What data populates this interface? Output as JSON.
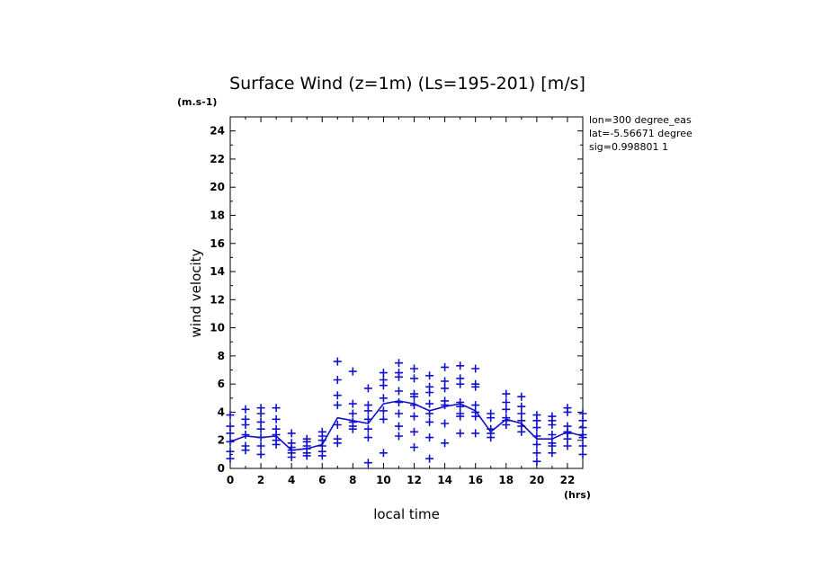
{
  "chart_data": {
    "type": "scatter",
    "title": "Surface Wind (z=1m) (Ls=195-201) [m/s]",
    "ylabel": "wind velocity",
    "xlabel": "local time",
    "y_unit_label": "(m.s-1)",
    "x_unit_label": "(hrs)",
    "xlim": [
      0,
      23
    ],
    "ylim": [
      0,
      25
    ],
    "xticks": [
      0,
      2,
      4,
      6,
      8,
      10,
      12,
      14,
      16,
      18,
      20,
      22
    ],
    "yticks": [
      0,
      2,
      4,
      6,
      8,
      10,
      12,
      14,
      16,
      18,
      20,
      22,
      24
    ],
    "info_lines": [
      "lon=300 degree_eas",
      "lat=-5.56671 degree",
      "sig=0.998801 1"
    ],
    "color": "#1010cc",
    "series": [
      {
        "name": "mean",
        "kind": "line",
        "x": [
          0,
          1,
          2,
          3,
          4,
          5,
          6,
          7,
          8,
          9,
          10,
          11,
          12,
          13,
          14,
          15,
          16,
          17,
          18,
          19,
          20,
          21,
          22,
          23
        ],
        "y": [
          1.9,
          2.3,
          2.2,
          2.3,
          1.3,
          1.4,
          1.7,
          3.6,
          3.4,
          3.2,
          4.6,
          4.8,
          4.6,
          4.1,
          4.4,
          4.6,
          4.1,
          2.6,
          3.5,
          3.2,
          2.1,
          2.1,
          2.6,
          2.3
        ]
      },
      {
        "name": "samples",
        "kind": "scatter",
        "points": [
          [
            0,
            3.8
          ],
          [
            0,
            3.0
          ],
          [
            0,
            2.5
          ],
          [
            0,
            1.9
          ],
          [
            0,
            1.2
          ],
          [
            0,
            0.7
          ],
          [
            1,
            4.2
          ],
          [
            1,
            3.5
          ],
          [
            1,
            3.1
          ],
          [
            1,
            2.4
          ],
          [
            1,
            1.6
          ],
          [
            1,
            1.3
          ],
          [
            2,
            4.3
          ],
          [
            2,
            3.9
          ],
          [
            2,
            3.3
          ],
          [
            2,
            2.8
          ],
          [
            2,
            2.2
          ],
          [
            2,
            1.6
          ],
          [
            2,
            1.0
          ],
          [
            3,
            4.3
          ],
          [
            3,
            3.5
          ],
          [
            3,
            2.8
          ],
          [
            3,
            2.4
          ],
          [
            3,
            2.0
          ],
          [
            3,
            1.7
          ],
          [
            4,
            2.5
          ],
          [
            4,
            1.8
          ],
          [
            4,
            1.5
          ],
          [
            4,
            1.3
          ],
          [
            4,
            1.1
          ],
          [
            4,
            0.8
          ],
          [
            5,
            2.1
          ],
          [
            5,
            1.9
          ],
          [
            5,
            1.6
          ],
          [
            5,
            1.4
          ],
          [
            5,
            1.1
          ],
          [
            5,
            0.9
          ],
          [
            6,
            2.6
          ],
          [
            6,
            2.3
          ],
          [
            6,
            2.0
          ],
          [
            6,
            1.6
          ],
          [
            6,
            1.2
          ],
          [
            6,
            0.9
          ],
          [
            7,
            7.6
          ],
          [
            7,
            6.3
          ],
          [
            7,
            5.2
          ],
          [
            7,
            4.5
          ],
          [
            7,
            3.1
          ],
          [
            7,
            2.1
          ],
          [
            7,
            1.8
          ],
          [
            8,
            6.9
          ],
          [
            8,
            4.6
          ],
          [
            8,
            3.9
          ],
          [
            8,
            3.3
          ],
          [
            8,
            3.0
          ],
          [
            8,
            2.8
          ],
          [
            9,
            5.7
          ],
          [
            9,
            4.5
          ],
          [
            9,
            4.1
          ],
          [
            9,
            3.5
          ],
          [
            9,
            2.8
          ],
          [
            9,
            2.2
          ],
          [
            9,
            0.4
          ],
          [
            10,
            6.8
          ],
          [
            10,
            6.3
          ],
          [
            10,
            5.9
          ],
          [
            10,
            5.0
          ],
          [
            10,
            4.1
          ],
          [
            10,
            3.5
          ],
          [
            10,
            1.1
          ],
          [
            11,
            7.5
          ],
          [
            11,
            6.8
          ],
          [
            11,
            6.5
          ],
          [
            11,
            5.5
          ],
          [
            11,
            4.7
          ],
          [
            11,
            3.9
          ],
          [
            11,
            3.0
          ],
          [
            11,
            2.3
          ],
          [
            12,
            7.1
          ],
          [
            12,
            6.4
          ],
          [
            12,
            5.3
          ],
          [
            12,
            5.1
          ],
          [
            12,
            4.5
          ],
          [
            12,
            3.7
          ],
          [
            12,
            2.6
          ],
          [
            12,
            1.5
          ],
          [
            13,
            6.6
          ],
          [
            13,
            5.8
          ],
          [
            13,
            5.4
          ],
          [
            13,
            4.6
          ],
          [
            13,
            3.9
          ],
          [
            13,
            3.3
          ],
          [
            13,
            2.2
          ],
          [
            13,
            0.7
          ],
          [
            14,
            7.2
          ],
          [
            14,
            6.2
          ],
          [
            14,
            5.7
          ],
          [
            14,
            4.8
          ],
          [
            14,
            4.5
          ],
          [
            14,
            3.2
          ],
          [
            14,
            1.8
          ],
          [
            15,
            7.3
          ],
          [
            15,
            6.4
          ],
          [
            15,
            6.0
          ],
          [
            15,
            4.7
          ],
          [
            15,
            4.4
          ],
          [
            15,
            3.9
          ],
          [
            15,
            3.7
          ],
          [
            15,
            2.5
          ],
          [
            16,
            7.1
          ],
          [
            16,
            6.0
          ],
          [
            16,
            5.8
          ],
          [
            16,
            4.5
          ],
          [
            16,
            4.0
          ],
          [
            16,
            3.7
          ],
          [
            16,
            2.5
          ],
          [
            17,
            3.9
          ],
          [
            17,
            3.6
          ],
          [
            17,
            2.8
          ],
          [
            17,
            2.5
          ],
          [
            17,
            2.2
          ],
          [
            18,
            5.3
          ],
          [
            18,
            4.7
          ],
          [
            18,
            4.2
          ],
          [
            18,
            3.6
          ],
          [
            18,
            3.4
          ],
          [
            18,
            3.1
          ],
          [
            19,
            5.1
          ],
          [
            19,
            4.4
          ],
          [
            19,
            3.9
          ],
          [
            19,
            3.4
          ],
          [
            19,
            3.0
          ],
          [
            19,
            2.6
          ],
          [
            20,
            3.8
          ],
          [
            20,
            3.4
          ],
          [
            20,
            2.9
          ],
          [
            20,
            2.3
          ],
          [
            20,
            1.7
          ],
          [
            20,
            1.1
          ],
          [
            20,
            0.5
          ],
          [
            21,
            3.7
          ],
          [
            21,
            3.4
          ],
          [
            21,
            3.1
          ],
          [
            21,
            2.4
          ],
          [
            21,
            1.8
          ],
          [
            21,
            1.6
          ],
          [
            21,
            1.1
          ],
          [
            22,
            4.3
          ],
          [
            22,
            4.0
          ],
          [
            22,
            3.0
          ],
          [
            22,
            2.6
          ],
          [
            22,
            2.5
          ],
          [
            22,
            2.1
          ],
          [
            22,
            1.6
          ],
          [
            23,
            3.9
          ],
          [
            23,
            3.4
          ],
          [
            23,
            2.9
          ],
          [
            23,
            2.4
          ],
          [
            23,
            2.2
          ],
          [
            23,
            1.6
          ],
          [
            23,
            1.0
          ]
        ]
      }
    ]
  }
}
